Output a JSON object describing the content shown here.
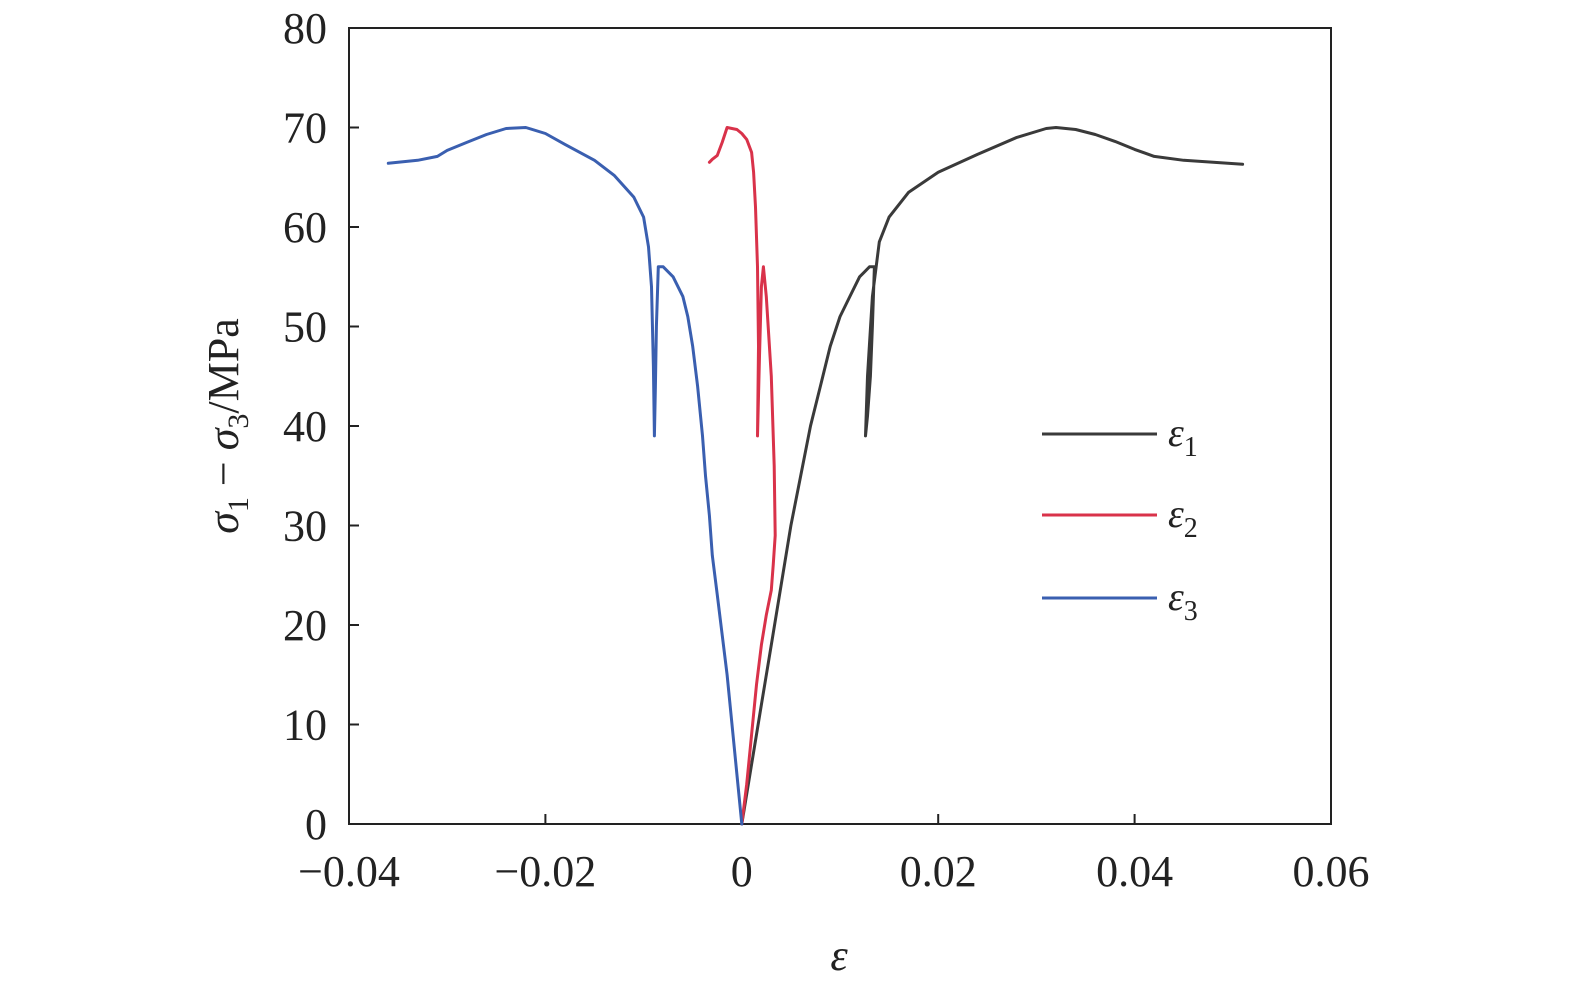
{
  "chart_data": {
    "type": "line",
    "xlabel": "ε",
    "ylabel": {
      "prefix_1": "σ",
      "sub_1": "1",
      "mid": " − ",
      "prefix_2": "σ",
      "sub_2": "3",
      "suffix": "/MPa"
    },
    "xlim": [
      -0.04,
      0.06
    ],
    "ylim": [
      0,
      80
    ],
    "x_ticks": [
      -0.04,
      -0.02,
      0,
      0.02,
      0.04,
      0.06
    ],
    "x_tick_labels": [
      "−0.04",
      "−0.02",
      "0",
      "0.02",
      "0.04",
      "0.06"
    ],
    "y_ticks": [
      0,
      10,
      20,
      30,
      40,
      50,
      60,
      70,
      80
    ],
    "y_tick_labels": [
      "0",
      "10",
      "20",
      "30",
      "40",
      "50",
      "60",
      "70",
      "80"
    ],
    "grid": false,
    "legend_position": "right-middle",
    "series": [
      {
        "name": "ε1",
        "label_base": "ε",
        "label_sub": "1",
        "color": "#3a3a3a",
        "points": [
          [
            0,
            0
          ],
          [
            0.001,
            6
          ],
          [
            0.002,
            12
          ],
          [
            0.003,
            18
          ],
          [
            0.004,
            24
          ],
          [
            0.005,
            30
          ],
          [
            0.006,
            35
          ],
          [
            0.007,
            40
          ],
          [
            0.008,
            44
          ],
          [
            0.009,
            48
          ],
          [
            0.01,
            51
          ],
          [
            0.011,
            53
          ],
          [
            0.012,
            55
          ],
          [
            0.0125,
            55.5
          ],
          [
            0.013,
            56
          ],
          [
            0.0135,
            56
          ],
          [
            0.0133,
            50
          ],
          [
            0.0131,
            45
          ],
          [
            0.0128,
            41
          ],
          [
            0.0126,
            39
          ],
          [
            0.0128,
            45
          ],
          [
            0.0133,
            53
          ],
          [
            0.014,
            58.5
          ],
          [
            0.015,
            61
          ],
          [
            0.017,
            63.5
          ],
          [
            0.02,
            65.5
          ],
          [
            0.024,
            67.3
          ],
          [
            0.028,
            69
          ],
          [
            0.031,
            69.9
          ],
          [
            0.032,
            70
          ],
          [
            0.034,
            69.8
          ],
          [
            0.036,
            69.3
          ],
          [
            0.038,
            68.6
          ],
          [
            0.04,
            67.8
          ],
          [
            0.042,
            67.1
          ],
          [
            0.045,
            66.7
          ],
          [
            0.048,
            66.5
          ],
          [
            0.051,
            66.3
          ]
        ]
      },
      {
        "name": "ε2",
        "label_base": "ε",
        "label_sub": "2",
        "color": "#d9324a",
        "points": [
          [
            0,
            0
          ],
          [
            0.0005,
            4
          ],
          [
            0.001,
            9
          ],
          [
            0.0015,
            14
          ],
          [
            0.002,
            18
          ],
          [
            0.0025,
            21
          ],
          [
            0.003,
            23.5
          ],
          [
            0.0032,
            26
          ],
          [
            0.0034,
            29
          ],
          [
            0.0033,
            36
          ],
          [
            0.003,
            45
          ],
          [
            0.0025,
            53
          ],
          [
            0.0022,
            56
          ],
          [
            0.002,
            54
          ],
          [
            0.0018,
            47
          ],
          [
            0.0016,
            39
          ],
          [
            0.0017,
            48
          ],
          [
            0.0016,
            56
          ],
          [
            0.0014,
            62
          ],
          [
            0.0012,
            65.5
          ],
          [
            0.001,
            67.5
          ],
          [
            0.0005,
            68.8
          ],
          [
            0,
            69.4
          ],
          [
            -0.0005,
            69.8
          ],
          [
            -0.0015,
            70
          ],
          [
            -0.002,
            68.5
          ],
          [
            -0.0025,
            67.2
          ],
          [
            -0.003,
            66.8
          ],
          [
            -0.0033,
            66.5
          ]
        ]
      },
      {
        "name": "ε3",
        "label_base": "ε",
        "label_sub": "3",
        "color": "#3a5fb0",
        "points": [
          [
            0,
            0
          ],
          [
            -0.0005,
            5
          ],
          [
            -0.001,
            10
          ],
          [
            -0.0015,
            15
          ],
          [
            -0.002,
            19
          ],
          [
            -0.0025,
            23
          ],
          [
            -0.003,
            27
          ],
          [
            -0.0033,
            31
          ],
          [
            -0.0037,
            35
          ],
          [
            -0.004,
            39
          ],
          [
            -0.0045,
            44
          ],
          [
            -0.005,
            48
          ],
          [
            -0.0055,
            51
          ],
          [
            -0.006,
            53
          ],
          [
            -0.007,
            55
          ],
          [
            -0.008,
            56
          ],
          [
            -0.0085,
            56
          ],
          [
            -0.0087,
            50
          ],
          [
            -0.0088,
            44
          ],
          [
            -0.0089,
            39
          ],
          [
            -0.009,
            46
          ],
          [
            -0.0092,
            54
          ],
          [
            -0.0095,
            58
          ],
          [
            -0.01,
            61
          ],
          [
            -0.011,
            63
          ],
          [
            -0.013,
            65.2
          ],
          [
            -0.015,
            66.7
          ],
          [
            -0.018,
            68.3
          ],
          [
            -0.02,
            69.4
          ],
          [
            -0.022,
            70
          ],
          [
            -0.024,
            69.9
          ],
          [
            -0.026,
            69.3
          ],
          [
            -0.028,
            68.5
          ],
          [
            -0.03,
            67.7
          ],
          [
            -0.031,
            67.1
          ],
          [
            -0.033,
            66.7
          ],
          [
            -0.035,
            66.5
          ],
          [
            -0.036,
            66.4
          ]
        ]
      }
    ]
  }
}
